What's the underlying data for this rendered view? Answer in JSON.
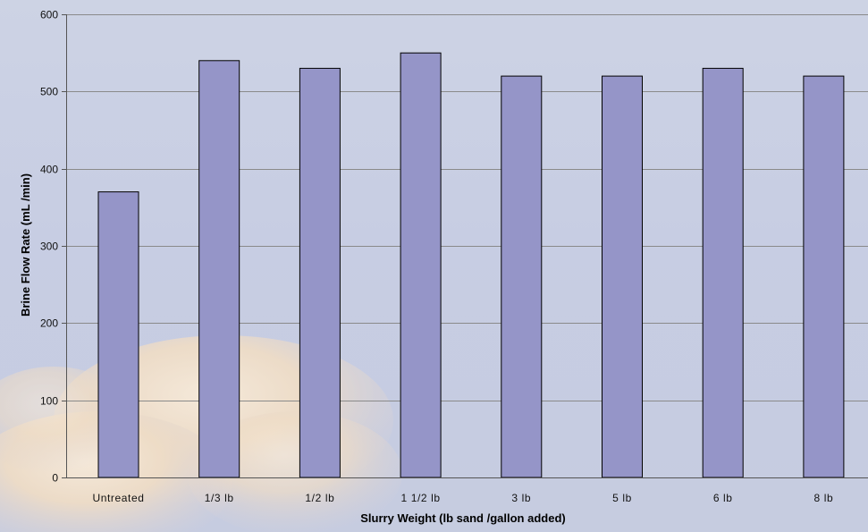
{
  "chart_data": {
    "type": "bar",
    "title": "",
    "xlabel": "Slurry Weight (lb sand /gallon added)",
    "ylabel": "Brine Flow Rate (mL /min)",
    "categories": [
      "Untreated",
      "1/3 lb",
      "1/2 lb",
      "1 1/2 lb",
      "3 lb",
      "5 lb",
      "6 lb",
      "8 lb"
    ],
    "values": [
      370,
      540,
      530,
      550,
      520,
      520,
      530,
      520
    ],
    "ylim": [
      0,
      600
    ],
    "yticks": [
      0,
      100,
      200,
      300,
      400,
      500,
      600
    ],
    "grid": true,
    "legend": "none",
    "colors": {
      "bar_fill": "#9595c8",
      "bar_stroke": "#000000",
      "grid": "#8a8a8a",
      "axis": "#555555"
    }
  }
}
